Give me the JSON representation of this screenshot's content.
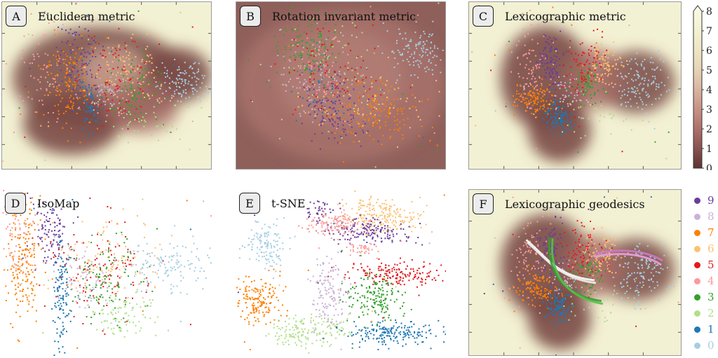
{
  "chart_data": [
    {
      "id": "A",
      "type": "scatter",
      "badge": "A",
      "title": "Euclidean metric",
      "background": "density-heatmap"
    },
    {
      "id": "B",
      "type": "scatter",
      "badge": "B",
      "title": "Rotation invariant metric",
      "background": "density-heatmap"
    },
    {
      "id": "C",
      "type": "scatter",
      "badge": "C",
      "title": "Lexicographic metric",
      "background": "density-heatmap"
    },
    {
      "id": "D",
      "type": "scatter",
      "badge": "D",
      "title": "IsoMap",
      "background": "none"
    },
    {
      "id": "E",
      "type": "scatter",
      "badge": "E",
      "title": "t-SNE",
      "background": "none"
    },
    {
      "id": "F",
      "type": "scatter",
      "badge": "F",
      "title": "Lexicographic geodesics",
      "background": "density-heatmap",
      "overlay": "geodesic curves"
    }
  ],
  "colorbar": {
    "ticks": [
      "0",
      "1",
      "2",
      "3",
      "4",
      "5",
      "6",
      "7",
      "8"
    ],
    "range": [
      0,
      8
    ],
    "colors": [
      "#5c3330",
      "#8a5450",
      "#b0736c",
      "#c99588",
      "#dcb9a4",
      "#e9d7b9",
      "#efe8c8",
      "#f5f3d6",
      "#fbfbe8"
    ]
  },
  "legend": [
    {
      "label": "9",
      "color": "#6a3d9a"
    },
    {
      "label": "8",
      "color": "#cab2d6"
    },
    {
      "label": "7",
      "color": "#ff7f00"
    },
    {
      "label": "6",
      "color": "#fdbf6f"
    },
    {
      "label": "5",
      "color": "#e31a1c"
    },
    {
      "label": "4",
      "color": "#fb9a99"
    },
    {
      "label": "3",
      "color": "#33a02c"
    },
    {
      "label": "2",
      "color": "#b2df8a"
    },
    {
      "label": "1",
      "color": "#1f78b4"
    },
    {
      "label": "0",
      "color": "#a6cee3"
    }
  ]
}
